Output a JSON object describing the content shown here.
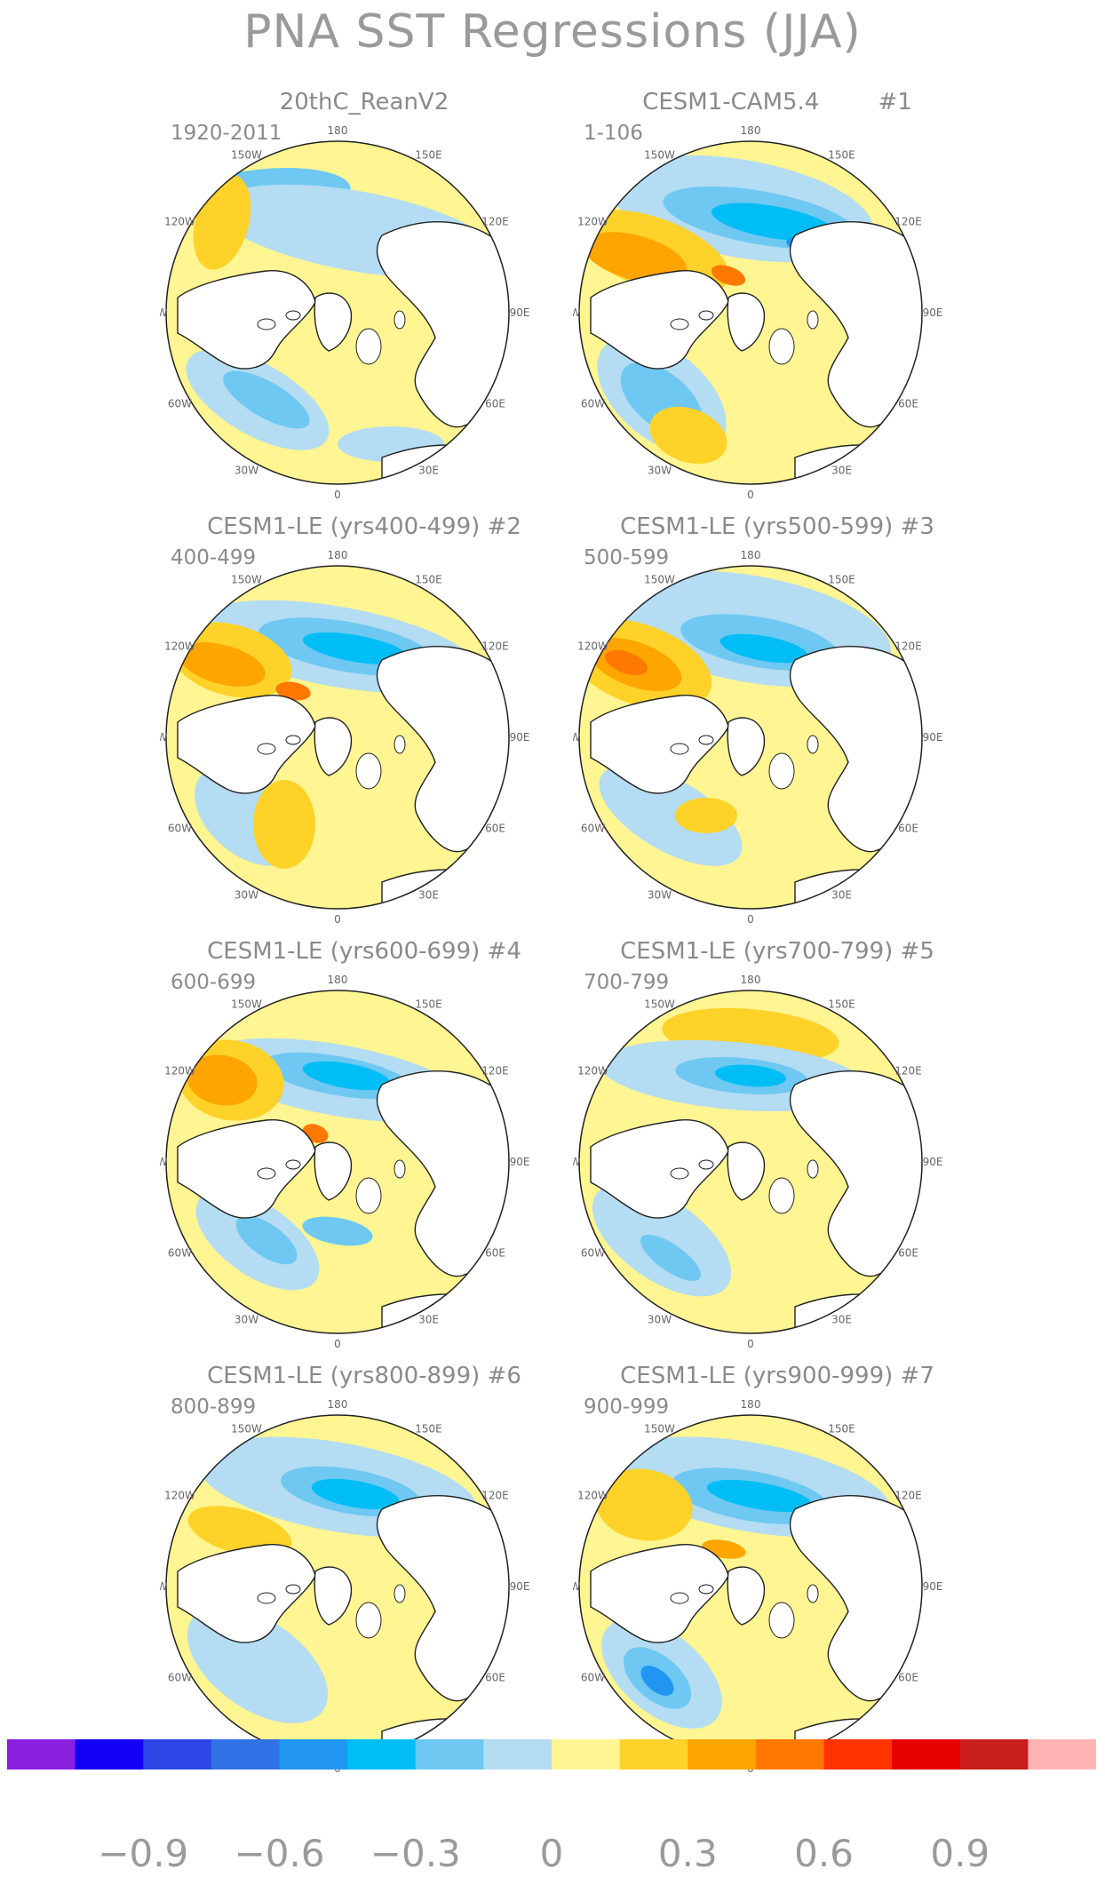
{
  "title": "PNA SST Regressions (JJA)",
  "panels": [
    {
      "title": "20thC_ReanV2",
      "years": "1920-2011"
    },
    {
      "title": "CESM1-CAM5.4        #1",
      "years": "1-106"
    },
    {
      "title": "CESM1-LE (yrs400-499) #2",
      "years": "400-499"
    },
    {
      "title": "CESM1-LE (yrs500-599) #3",
      "years": "500-599"
    },
    {
      "title": "CESM1-LE (yrs600-699) #4",
      "years": "600-699"
    },
    {
      "title": "CESM1-LE (yrs700-799) #5",
      "years": "700-799"
    },
    {
      "title": "CESM1-LE (yrs800-899) #6",
      "years": "800-899"
    },
    {
      "title": "CESM1-LE (yrs900-999) #7",
      "years": "900-999"
    }
  ],
  "longitude_labels": [
    "180",
    "150E",
    "120E",
    "90E",
    "60E",
    "30E",
    "0",
    "30W",
    "60W",
    "90W",
    "120W",
    "150W"
  ],
  "colorbar": {
    "colors": [
      "#8a1fe0",
      "#1400f5",
      "#2d46e6",
      "#3072e6",
      "#2096f2",
      "#00bef5",
      "#6ec8f2",
      "#b4dcf2",
      "#fff592",
      "#ffd22a",
      "#ffa500",
      "#ff7800",
      "#ff3200",
      "#e60000",
      "#c81e1e",
      "#ffb4b4"
    ],
    "tick_labels": [
      "−0.9",
      "−0.6",
      "−0.3",
      "0",
      "0.3",
      "0.6",
      "0.9"
    ]
  }
}
